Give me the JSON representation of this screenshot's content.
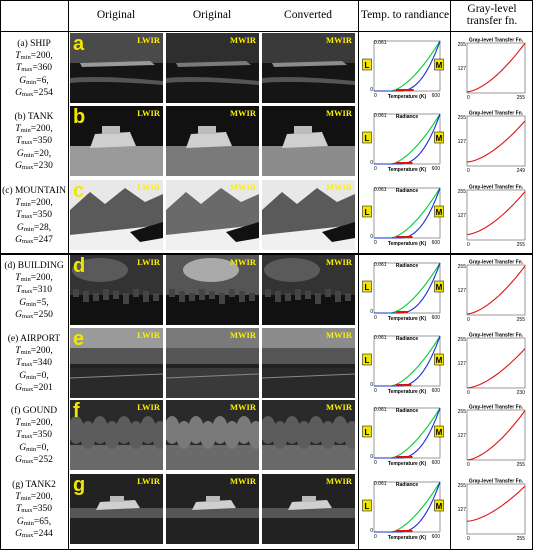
{
  "header": {
    "col1": "Original",
    "col2": "Original",
    "col3": "Converted",
    "col4": "Temp. to randiance",
    "col5": "Gray-level transfer fn."
  },
  "image_tags": {
    "lwir": "LWIR",
    "mwir": "MWIR"
  },
  "radiance_plot": {
    "title": "Radiance",
    "xlabel": "Temperature (K)",
    "ymax": "0.061",
    "ymin": "0",
    "xmin": "0",
    "xmax": "600",
    "badge_l": "L",
    "badge_m": "M",
    "colors": {
      "lwir_curve": "#00cc33",
      "mwir_curve": "#1a2fd6",
      "range_marker": "#dd1111",
      "badge": "#f2e600"
    }
  },
  "transfer_plot": {
    "title": "Gray-level Transfer Fn.",
    "ytop": "255",
    "ymid": "127",
    "xmin": "0",
    "curve_color": "#e01414"
  },
  "rows": [
    {
      "letter": "a",
      "name": "(a) SHIP",
      "tmin": "200",
      "tmax": "360",
      "gmin": "6",
      "gmax": "254",
      "xmax": "255",
      "radiance_title": ""
    },
    {
      "letter": "b",
      "name": "(b) TANK",
      "tmin": "200",
      "tmax": "350",
      "gmin": "20",
      "gmax": "230",
      "xmax": "249",
      "radiance_title": "Radiance"
    },
    {
      "letter": "c",
      "name": "(c) MOUNTAIN",
      "tmin": "200",
      "tmax": "350",
      "gmin": "28",
      "gmax": "247",
      "xmax": "255",
      "radiance_title": "Radiance"
    },
    {
      "letter": "d",
      "name": "(d) BUILDING",
      "tmin": "200",
      "tmax": "310",
      "gmin": "5",
      "gmax": "250",
      "xmax": "255",
      "radiance_title": "Radiance"
    },
    {
      "letter": "e",
      "name": "(e) AIRPORT",
      "tmin": "200",
      "tmax": "340",
      "gmin": "0",
      "gmax": "201",
      "xmax": "230",
      "radiance_title": "Radiance"
    },
    {
      "letter": "f",
      "name": "(f) GOUND",
      "tmin": "200",
      "tmax": "350",
      "gmin": "0",
      "gmax": "252",
      "xmax": "255",
      "radiance_title": "Radiance"
    },
    {
      "letter": "g",
      "name": "(g) TANK2",
      "tmin": "200",
      "tmax": "350",
      "gmin": "65",
      "gmax": "244",
      "xmax": "255",
      "radiance_title": "Radiance"
    }
  ],
  "labels": {
    "tmin": "min",
    "tmax": "max",
    "gmin": "min",
    "gmax": "max"
  }
}
